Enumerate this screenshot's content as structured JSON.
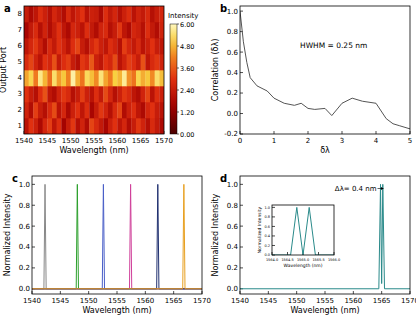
{
  "chart_data": [
    {
      "type": "heatmap",
      "title": "a",
      "x_label": "Wavelength (nm)",
      "y_label": "Output Port",
      "xlim": [
        1540,
        1570
      ],
      "xticks": [
        1540,
        1545,
        1550,
        1555,
        1560,
        1565,
        1570
      ],
      "ylim": [
        0.5,
        8.5
      ],
      "yticks": [
        1,
        2,
        3,
        4,
        5,
        6,
        7,
        8
      ],
      "cells": [
        [
          2.1,
          3.0,
          2.5,
          1.8,
          2.7,
          3.2,
          2.2,
          2.9,
          1.6,
          2.4,
          3.1,
          2.0,
          2.6,
          1.9,
          3.3,
          2.8,
          2.3,
          1.7,
          2.5,
          3.0,
          2.2,
          2.7,
          1.9,
          2.4,
          3.1,
          2.6,
          2.0,
          2.8,
          2.3,
          1.8
        ],
        [
          2.6,
          1.9,
          3.2,
          2.4,
          2.0,
          2.8,
          3.4,
          2.1,
          2.7,
          1.8,
          2.5,
          3.0,
          2.2,
          2.9,
          1.7,
          2.4,
          3.1,
          2.6,
          2.0,
          2.8,
          3.3,
          1.9,
          2.5,
          2.9,
          2.2,
          1.8,
          2.7,
          3.0,
          2.4,
          2.1
        ],
        [
          3.0,
          2.4,
          2.0,
          2.9,
          3.5,
          2.2,
          1.9,
          2.6,
          3.1,
          2.8,
          2.0,
          2.4,
          3.2,
          2.5,
          2.1,
          2.9,
          2.3,
          3.4,
          2.7,
          2.0,
          2.5,
          3.1,
          2.8,
          2.2,
          1.9,
          2.6,
          3.3,
          2.1,
          2.9,
          2.5
        ],
        [
          4.6,
          5.2,
          4.1,
          5.6,
          4.8,
          3.9,
          5.4,
          4.5,
          5.0,
          4.2,
          5.8,
          4.7,
          4.0,
          5.3,
          4.9,
          4.3,
          5.5,
          4.6,
          4.1,
          5.1,
          4.8,
          5.7,
          4.4,
          4.0,
          5.2,
          4.7,
          5.0,
          4.3,
          5.4,
          4.9
        ],
        [
          2.8,
          3.3,
          2.6,
          2.1,
          3.0,
          2.7,
          3.5,
          2.3,
          2.9,
          3.2,
          2.4,
          2.0,
          3.1,
          2.8,
          3.6,
          2.5,
          2.2,
          3.0,
          2.7,
          3.4,
          2.1,
          2.6,
          3.2,
          2.9,
          2.4,
          3.5,
          2.2,
          2.8,
          3.1,
          2.6
        ],
        [
          2.2,
          2.7,
          3.1,
          2.5,
          1.9,
          2.8,
          2.3,
          3.0,
          2.6,
          2.1,
          2.9,
          3.3,
          2.4,
          2.0,
          2.7,
          3.1,
          2.5,
          2.2,
          2.9,
          2.6,
          2.0,
          3.2,
          2.7,
          2.3,
          2.8,
          2.1,
          2.5,
          3.0,
          2.4,
          2.2
        ],
        [
          1.7,
          2.3,
          2.8,
          2.0,
          2.6,
          1.9,
          2.4,
          3.0,
          2.2,
          1.8,
          2.7,
          2.5,
          2.1,
          2.9,
          2.3,
          1.9,
          2.6,
          2.8,
          2.0,
          2.4,
          3.1,
          2.2,
          1.8,
          2.7,
          2.5,
          2.0,
          2.9,
          2.3,
          1.9,
          2.6
        ],
        [
          2.4,
          1.8,
          2.2,
          2.9,
          2.5,
          2.0,
          2.7,
          2.3,
          1.9,
          2.8,
          2.2,
          2.6,
          3.0,
          2.1,
          2.5,
          2.4,
          1.8,
          2.9,
          2.3,
          2.7,
          2.0,
          2.5,
          2.9,
          2.1,
          2.6,
          2.3,
          2.8,
          2.0,
          2.4,
          2.7
        ]
      ],
      "colorbar": {
        "label": "Intensity",
        "range": [
          0,
          6
        ],
        "ticks": [
          {
            "value": 0,
            "label": "0.00"
          },
          {
            "value": 1.2,
            "label": "1.20"
          },
          {
            "value": 2.4,
            "label": "2.40"
          },
          {
            "value": 3.6,
            "label": "3.60"
          },
          {
            "value": 4.8,
            "label": "4.80"
          },
          {
            "value": 6,
            "label": "6.00"
          }
        ]
      }
    },
    {
      "type": "line",
      "title": "b",
      "x_label": "δλ",
      "y_label": "Correlation  (δλ)",
      "annotation": "HWHM = 0.25 nm",
      "xlim": [
        0,
        5
      ],
      "xticks": [
        0,
        1,
        2,
        3,
        4,
        5
      ],
      "ylim": [
        -0.2,
        1.05
      ],
      "yticks": [
        -0.2,
        {
          "value": 0,
          "label": "0.0"
        },
        0.2,
        0.4,
        0.6,
        0.8,
        {
          "value": 1,
          "label": "1.0"
        }
      ],
      "color": "#555555",
      "x": [
        0,
        0.1,
        0.2,
        0.3,
        0.5,
        0.8,
        1.0,
        1.3,
        1.6,
        1.8,
        2.0,
        2.2,
        2.5,
        2.7,
        3.0,
        3.3,
        3.6,
        4.0,
        4.3,
        4.5,
        4.7,
        5.0
      ],
      "values": [
        1.0,
        0.7,
        0.5,
        0.35,
        0.27,
        0.22,
        0.15,
        0.1,
        0.08,
        0.1,
        0.05,
        0.04,
        0.05,
        -0.02,
        0.1,
        0.15,
        0.12,
        0.1,
        -0.05,
        -0.1,
        -0.12,
        -0.15
      ]
    },
    {
      "type": "line",
      "title": "c",
      "x_label": "Wavelength (nm)",
      "y_label": "Normalized Intensity",
      "xlim": [
        1540,
        1570
      ],
      "xticks": [
        1540,
        1545,
        1550,
        1555,
        1560,
        1565,
        1570
      ],
      "ylim": [
        -0.05,
        1.08
      ],
      "yticks": [
        {
          "value": 0,
          "label": "0.0"
        },
        0.2,
        0.4,
        0.6,
        0.8,
        {
          "value": 1,
          "label": "1.0"
        }
      ],
      "series": [
        {
          "color": "#888888",
          "x": [
            1540,
            1542.1,
            1542.3,
            1542.5,
            1570
          ],
          "values": [
            0,
            0,
            1,
            0,
            0
          ]
        },
        {
          "color": "#2ca02c",
          "x": [
            1540,
            1547.8,
            1548.0,
            1548.2,
            1570
          ],
          "values": [
            0,
            0,
            1,
            0,
            0
          ]
        },
        {
          "color": "#4a5fc8",
          "x": [
            1540,
            1552.4,
            1552.6,
            1552.8,
            1570
          ],
          "values": [
            0,
            0,
            1,
            0,
            0
          ]
        },
        {
          "color": "#d0409a",
          "x": [
            1540,
            1557.2,
            1557.4,
            1557.6,
            1570
          ],
          "values": [
            0,
            0,
            1,
            0,
            0
          ]
        },
        {
          "color": "#203070",
          "x": [
            1540,
            1562.0,
            1562.2,
            1562.4,
            1570
          ],
          "values": [
            0,
            0,
            1,
            0,
            0
          ]
        },
        {
          "color": "#e8a020",
          "x": [
            1540,
            1566.6,
            1566.8,
            1567.0,
            1570
          ],
          "values": [
            0,
            0,
            1,
            0,
            0
          ]
        }
      ]
    },
    {
      "type": "line",
      "title": "d",
      "x_label": "Wavelength (nm)",
      "y_label": "Normalized Intensity",
      "annotation": "Δλ= 0.4 nm",
      "xlim": [
        1540,
        1570
      ],
      "xticks": [
        1540,
        1545,
        1550,
        1555,
        1560,
        1565,
        1570
      ],
      "ylim": [
        -0.05,
        1.08
      ],
      "yticks": [
        {
          "value": 0,
          "label": "0.0"
        },
        0.2,
        0.4,
        0.6,
        0.8,
        {
          "value": 1,
          "label": "1.0"
        }
      ],
      "series": [
        {
          "color": "#2a8a8a",
          "x": [
            1540,
            1564.5,
            1564.8,
            1565.0,
            1565.2,
            1565.5,
            1570
          ],
          "values": [
            0,
            0,
            1,
            0.05,
            1,
            0,
            0
          ]
        }
      ]
    },
    {
      "type": "line",
      "x_label": "Wavelength (nm)",
      "y_label": "Normalized Intensity",
      "xlim": [
        1564,
        1566
      ],
      "xticks": [
        {
          "value": 1564,
          "label": "1564.0"
        },
        1564.5,
        {
          "value": 1565,
          "label": "1565.0"
        },
        1565.5,
        {
          "value": 1566,
          "label": "1566.0"
        }
      ],
      "ylim": [
        0,
        1.05
      ],
      "yticks": [
        {
          "value": 0,
          "label": "0.0"
        },
        0.2,
        0.4,
        0.6,
        0.8,
        {
          "value": 1,
          "label": "1.0"
        }
      ],
      "series": [
        {
          "color": "#2a8a8a",
          "x": [
            1564.0,
            1564.6,
            1564.8,
            1565.0,
            1565.2,
            1565.4,
            1566.0
          ],
          "values": [
            0,
            0,
            1,
            0,
            1,
            0,
            0
          ]
        }
      ]
    }
  ]
}
